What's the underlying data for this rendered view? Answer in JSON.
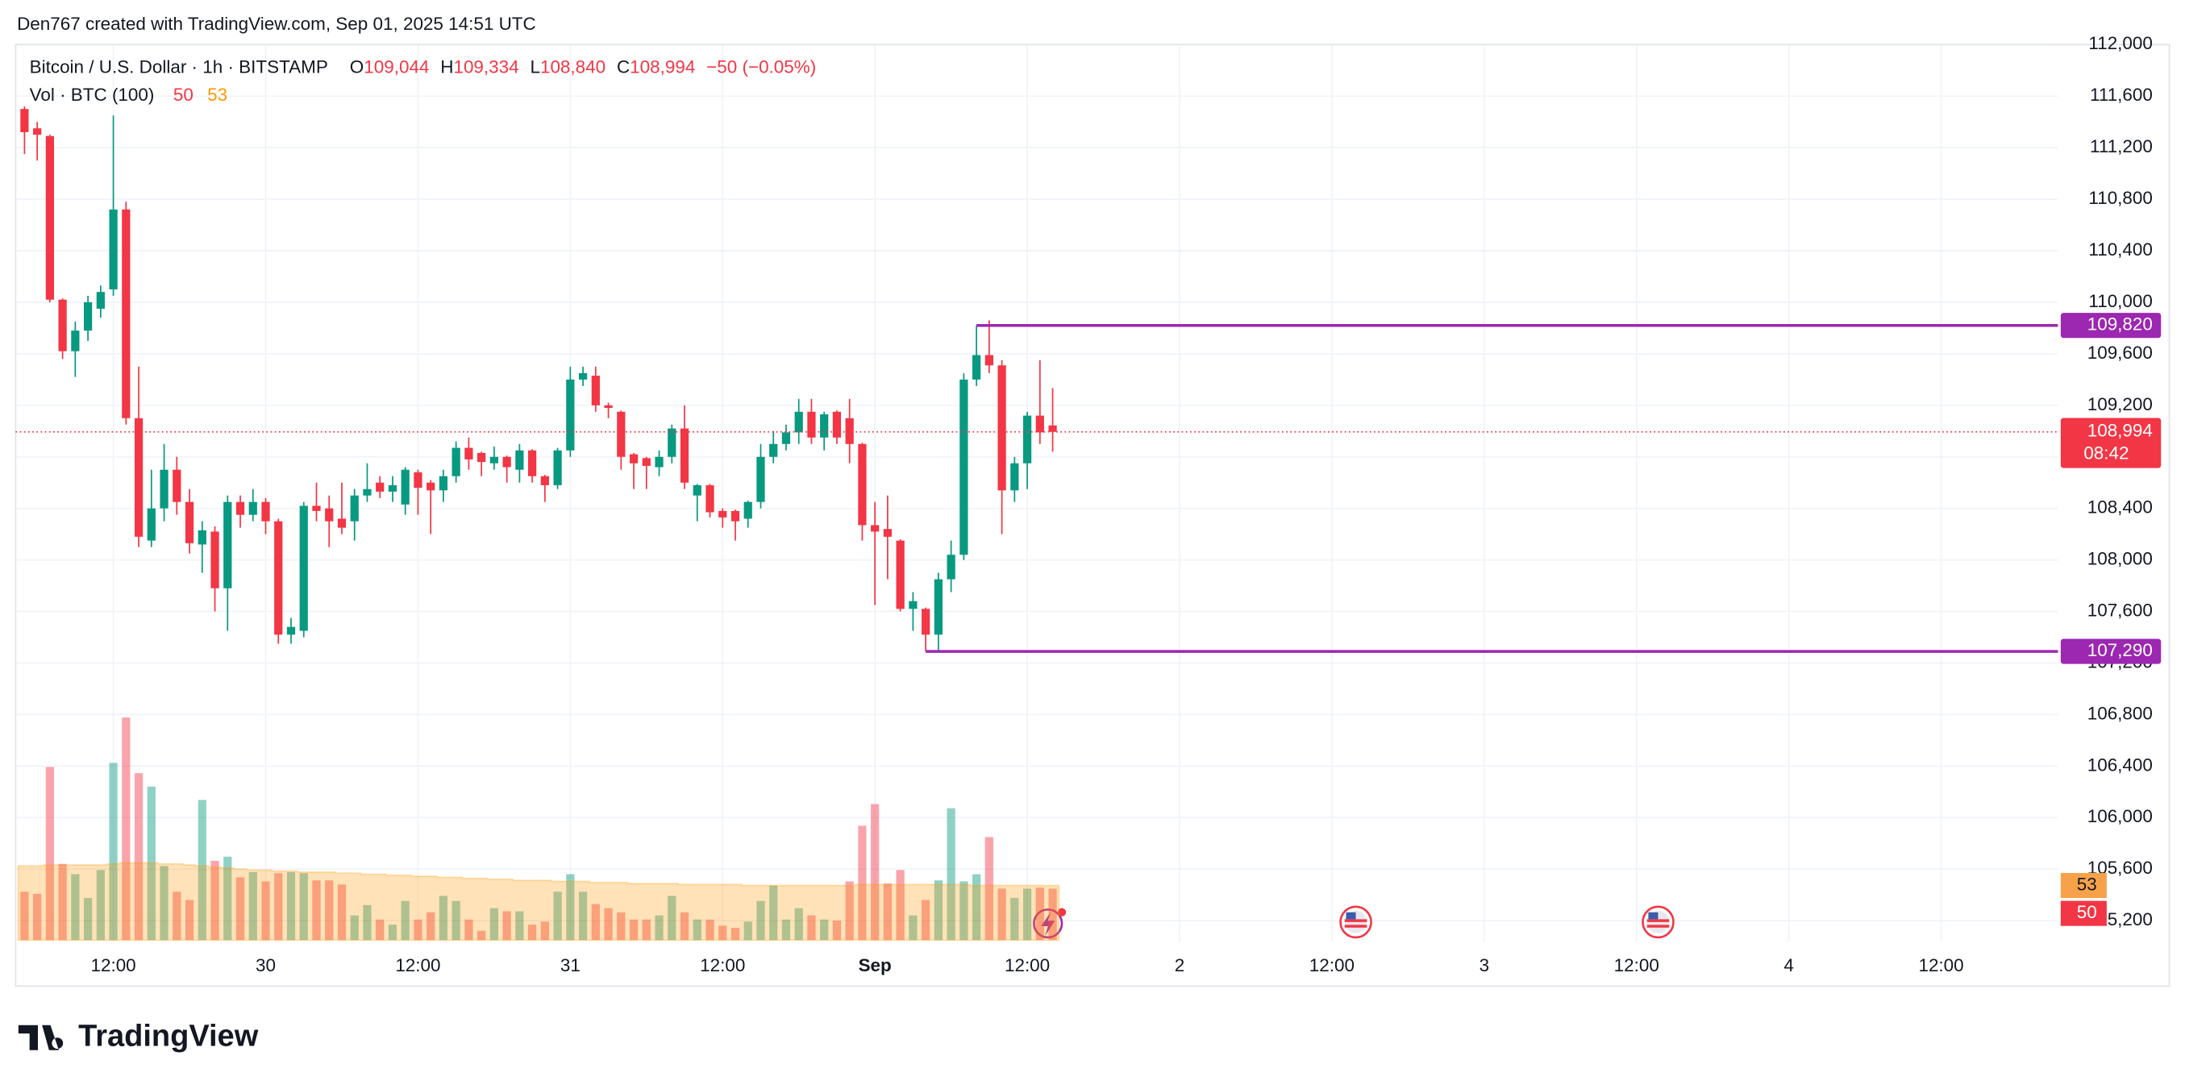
{
  "header": {
    "attribution": "Den767 created with TradingView.com, Sep 01, 2025 14:51 UTC",
    "symbol": "Bitcoin / U.S. Dollar · 1h · BITSTAMP",
    "ohlc": [
      {
        "key": "O",
        "text": "109,044"
      },
      {
        "key": "H",
        "text": "109,334"
      },
      {
        "key": "L",
        "text": "108,840"
      },
      {
        "key": "C",
        "text": "108,994"
      }
    ],
    "change": "−50 (−0.05%)",
    "volume_label": "Vol · BTC (100)"
  },
  "chart_data": {
    "type": "candlestick",
    "up_color": "#089981",
    "down_color": "#f23645",
    "open": [
      111500,
      111350,
      111290,
      110020,
      109620,
      109780,
      109950,
      110100,
      110720,
      109100,
      108150,
      108400,
      108700,
      108450,
      108120,
      108220,
      107780,
      108450,
      108350,
      108450,
      108300,
      107420,
      107450,
      108420,
      108400,
      108320,
      108300,
      108500,
      108600,
      108530,
      108430,
      108680,
      108600,
      108540,
      108650,
      108870,
      108830,
      108750,
      108800,
      108700,
      108850,
      108650,
      108580,
      108850,
      109400,
      109430,
      109200,
      109150,
      108820,
      108790,
      108720,
      108800,
      109020,
      108500,
      108580,
      108380,
      108380,
      108320,
      108450,
      108800,
      108900,
      108990,
      109150,
      108950,
      109150,
      109100,
      108900,
      108270,
      108240,
      108150,
      107620,
      107620,
      107420,
      107850,
      108040,
      109400,
      109590,
      109510,
      108540,
      108750,
      109120,
      109044
    ],
    "high": [
      111520,
      111400,
      111300,
      110030,
      109850,
      110050,
      110130,
      111450,
      110780,
      109500,
      108700,
      108900,
      108800,
      108550,
      108300,
      108260,
      108500,
      108500,
      108550,
      108480,
      108320,
      107550,
      108450,
      108600,
      108500,
      108600,
      108550,
      108750,
      108650,
      108650,
      108720,
      108700,
      108620,
      108700,
      108920,
      108950,
      108840,
      108880,
      108810,
      108900,
      108860,
      108660,
      108870,
      109500,
      109500,
      109500,
      109220,
      109160,
      108830,
      108800,
      108850,
      109050,
      109200,
      108590,
      108590,
      108400,
      108390,
      108460,
      108900,
      109000,
      109050,
      109250,
      109250,
      109150,
      109160,
      109250,
      108910,
      108450,
      108500,
      108160,
      107750,
      107630,
      107900,
      108150,
      109450,
      109820,
      109860,
      109550,
      108800,
      109150,
      109550,
      109334
    ],
    "low": [
      111150,
      111100,
      110000,
      109560,
      109420,
      109700,
      109880,
      110050,
      109050,
      108100,
      108100,
      108300,
      108350,
      108050,
      107900,
      107600,
      107450,
      108250,
      108300,
      108200,
      107350,
      107350,
      107400,
      108300,
      108100,
      108200,
      108150,
      108450,
      108480,
      108450,
      108350,
      108350,
      108200,
      108450,
      108600,
      108700,
      108650,
      108700,
      108600,
      108600,
      108600,
      108450,
      108550,
      108800,
      109350,
      109150,
      109100,
      108700,
      108550,
      108550,
      108650,
      108750,
      108550,
      108300,
      108330,
      108250,
      108150,
      108250,
      108400,
      108750,
      108850,
      108900,
      108900,
      108850,
      108900,
      108750,
      108150,
      107650,
      107850,
      107600,
      107450,
      107290,
      107290,
      107750,
      108000,
      109350,
      109450,
      108200,
      108450,
      108550,
      108900,
      108840
    ],
    "close": [
      111320,
      111300,
      110020,
      109620,
      109780,
      110000,
      110080,
      110720,
      109100,
      108180,
      108400,
      108700,
      108450,
      108130,
      108230,
      107780,
      108450,
      108350,
      108450,
      108300,
      107420,
      107480,
      108420,
      108380,
      108300,
      108250,
      108500,
      108550,
      108530,
      108580,
      108700,
      108560,
      108540,
      108650,
      108870,
      108780,
      108760,
      108800,
      108720,
      108850,
      108650,
      108580,
      108850,
      109400,
      109450,
      109200,
      109180,
      108800,
      108750,
      108730,
      108800,
      109020,
      108600,
      108580,
      108370,
      108330,
      108300,
      108450,
      108800,
      108900,
      108990,
      109150,
      108950,
      109130,
      108950,
      108900,
      108270,
      108220,
      108180,
      107620,
      107680,
      107420,
      107850,
      108040,
      109400,
      109590,
      109510,
      108540,
      108750,
      109120,
      108990,
      108994
    ],
    "volume": {
      "values": [
        47,
        45,
        168,
        74,
        64,
        41,
        68,
        172,
        216,
        162,
        149,
        72,
        47,
        39,
        136,
        77,
        81,
        61,
        66,
        57,
        65,
        66,
        65,
        58,
        58,
        54,
        24,
        34,
        20,
        15,
        38,
        20,
        27,
        43,
        38,
        20,
        9,
        31,
        28,
        28,
        15,
        18,
        47,
        64,
        47,
        35,
        31,
        27,
        20,
        20,
        24,
        43,
        27,
        20,
        20,
        14,
        12,
        18,
        38,
        53,
        20,
        31,
        24,
        20,
        19,
        57,
        111,
        132,
        55,
        68,
        24,
        39,
        58,
        128,
        57,
        64,
        100,
        50,
        41,
        50,
        51,
        50
      ],
      "ma": [
        72,
        72,
        73,
        73,
        73,
        73,
        73,
        74,
        75,
        75,
        75,
        74,
        74,
        73,
        72,
        71,
        70,
        69,
        68,
        68,
        67,
        67,
        66,
        66,
        66,
        65,
        65,
        64,
        64,
        63,
        63,
        62,
        62,
        61,
        61,
        60,
        60,
        59,
        59,
        58,
        58,
        58,
        57,
        57,
        57,
        56,
        56,
        56,
        55,
        55,
        55,
        55,
        54,
        54,
        54,
        54,
        54,
        53,
        53,
        53,
        53,
        53,
        53,
        53,
        53,
        53,
        54,
        54,
        54,
        54,
        54,
        54,
        54,
        54,
        54,
        53,
        53,
        53,
        53,
        53,
        53,
        53
      ],
      "ma_color": "#ff9800",
      "ma_label_color": "#f7a24a"
    },
    "ylim": [
      105038,
      112000
    ],
    "yticks": [
      {
        "value": 112000,
        "label": "112,000"
      },
      {
        "value": 111600,
        "label": "111,600"
      },
      {
        "value": 111200,
        "label": "111,200"
      },
      {
        "value": 110800,
        "label": "110,800"
      },
      {
        "value": 110400,
        "label": "110,400"
      },
      {
        "value": 110000,
        "label": "110,000"
      },
      {
        "value": 109600,
        "label": "109,600"
      },
      {
        "value": 109200,
        "label": "109,200"
      },
      {
        "value": 108800,
        "label": "108,800"
      },
      {
        "value": 108400,
        "label": "108,400"
      },
      {
        "value": 108000,
        "label": "108,000"
      },
      {
        "value": 107600,
        "label": "107,600"
      },
      {
        "value": 107200,
        "label": "107,200"
      },
      {
        "value": 106800,
        "label": "106,800"
      },
      {
        "value": 106400,
        "label": "106,400"
      },
      {
        "value": 106000,
        "label": "106,000"
      },
      {
        "value": 105600,
        "label": "105,600"
      },
      {
        "value": 105200,
        "label": "105,200"
      }
    ],
    "xlim": [
      -0.7,
      160.2
    ],
    "xticks": [
      {
        "value": 7,
        "label": "12:00"
      },
      {
        "value": 19,
        "label": "30"
      },
      {
        "value": 31,
        "label": "12:00"
      },
      {
        "value": 43,
        "label": "31"
      },
      {
        "value": 55,
        "label": "12:00"
      },
      {
        "value": 67,
        "label": "Sep",
        "emphasis": true
      },
      {
        "value": 79,
        "label": "12:00"
      },
      {
        "value": 91,
        "label": "2"
      },
      {
        "value": 103,
        "label": "12:00"
      },
      {
        "value": 115,
        "label": "3"
      },
      {
        "value": 127,
        "label": "12:00"
      },
      {
        "value": 139,
        "label": "4"
      },
      {
        "value": 151,
        "label": "12:00"
      }
    ],
    "grid": true,
    "levels": [
      {
        "value": 109820,
        "label": "109,820",
        "color": "#9c27b0"
      },
      {
        "value": 107290,
        "label": "107,290",
        "color": "#9c27b0"
      }
    ],
    "last_price": {
      "value": 108994,
      "label": "108,994",
      "countdown": "08:42"
    }
  },
  "branding": "TradingView"
}
